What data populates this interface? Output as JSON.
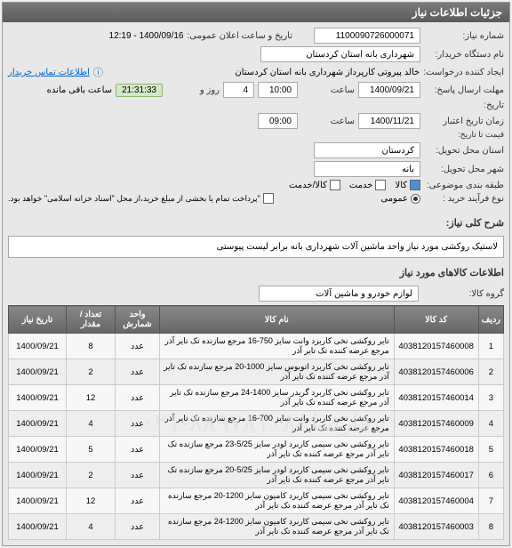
{
  "panel": {
    "title": "جزئیات اطلاعات نیاز"
  },
  "form": {
    "need_number_label": "شماره نیاز:",
    "need_number": "1100090726000071",
    "announce_label": "تاریخ و ساعت اعلان عمومی:",
    "announce_value": "1400/09/16 - 12:19",
    "org_label": "نام دستگاه خریدار:",
    "org_value": "شهرداری بانه استان کردستان",
    "creator_label": "ایجاد کننده درخواست:",
    "creator_value": "خالد پیروتی کارپرداز شهرداری بانه استان کردستان",
    "contact_link": "اطلاعات تماس خریدار",
    "deadline_label": "مهلت ارسال پاسخ:",
    "deadline_date": "1400/09/21",
    "time_label": "ساعت",
    "deadline_time": "10:00",
    "day_label": "روز و",
    "days": "4",
    "timer": "21:31:33",
    "timer_suffix": "ساعت باقی مانده",
    "history_label": "تاریخ:",
    "validity_label": "زمان تاریخ اعتبار",
    "validity_sublabel": "قیمت تا تاریخ:",
    "validity_date": "1400/11/21",
    "validity_time": "09:00",
    "province_label": "استان محل تحویل:",
    "province": "کردستان",
    "city_label": "شهر محل تحویل:",
    "city": "بانه",
    "features_label": "طبقه بندی موضوعی:",
    "feat_product": "کالا",
    "feat_service": "خدمت",
    "feat_both": "کالا/خدمت",
    "process_label": "نوع فرآیند خرید :",
    "proc_open": "عمومی",
    "proc_note": "\"پرداخت تمام یا بخشی از مبلغ خرید،از محل \"اسناد خزانه اسلامی\" خواهد بود."
  },
  "desc": {
    "title_label": "شرح کلی نیاز:",
    "title_text": "لاستیک روکشی مورد نیاز واحد ماشین آلات شهرداری بانه برابر لیست پیوستی",
    "items_header": "اطلاعات کالاهای مورد نیاز",
    "group_label": "گروه کالا:",
    "group_value": "لوازم خودرو و ماشین آلات"
  },
  "table": {
    "watermark": "فارسا -۸۸۹۷۸۱۰۸-۰۲۱",
    "headers": {
      "row": "ردیف",
      "code": "کد کالا",
      "name": "نام کالا",
      "unit": "واحد شمارش",
      "qty": "تعداد / مقدار",
      "date": "تاریخ نیاز"
    },
    "rows": [
      {
        "n": "1",
        "code": "4038120157460008",
        "name": "تایر روکشی نخی کاربرد وانت سایز 750-16 مرجع سازنده تک تایر آذر مرجع عرضه کننده تک تایر آذر",
        "unit": "عدد",
        "qty": "8",
        "date": "1400/09/21"
      },
      {
        "n": "2",
        "code": "4038120157460006",
        "name": "تایر روکشی نخی کاربرد اتوبوس سایز 1000-20 مرجع سازنده تک تایر آذر مرجع عرضه کننده تک تایر آذر",
        "unit": "عدد",
        "qty": "2",
        "date": "1400/09/21"
      },
      {
        "n": "3",
        "code": "4038120157460014",
        "name": "تایر روکشی نخی کاربرد گریدر سایز 1400-24 مرجع سازنده تک تایر آذر مرجع عرضه کننده تک تایر آذر",
        "unit": "عدد",
        "qty": "12",
        "date": "1400/09/21"
      },
      {
        "n": "4",
        "code": "4038120157460009",
        "name": "تایر روکشی نخی کاربرد وانت سایز 700-16 مرجع سازنده تک تایر آذر مرجع عرضه کننده تک تایر آذر",
        "unit": "عدد",
        "qty": "4",
        "date": "1400/09/21"
      },
      {
        "n": "5",
        "code": "4038120157460018",
        "name": "تایر روکشی نخی سیمی کاربرد لودر سایز 5/25-23 مرجع سازنده تک تایر آذر مرجع عرضه کننده تک تایر آذر",
        "unit": "عدد",
        "qty": "5",
        "date": "1400/09/21"
      },
      {
        "n": "6",
        "code": "4038120157460017",
        "name": "تایر روکشی نخی سیمی کاربرد لودر سایز 5/25-20 مرجع سازنده تک تایر آذر مرجع عرضه کننده تک تایر آذر",
        "unit": "عدد",
        "qty": "2",
        "date": "1400/09/21"
      },
      {
        "n": "7",
        "code": "4038120157460004",
        "name": "تایر روکشی نخی سیمی کاربرد کامیون سایز 1200-20 مرجع سازنده تک تایر آذر مرجع عرضه کننده تک تایر آذر",
        "unit": "عدد",
        "qty": "12",
        "date": "1400/09/21"
      },
      {
        "n": "8",
        "code": "4038120157460003",
        "name": "تایر روکشی نخی سیمی کاربرد کامیون سایز 1200-24 مرجع سازنده تک تایر آذر مرجع عرضه کننده تک تایر آذر",
        "unit": "عدد",
        "qty": "4",
        "date": "1400/09/21"
      }
    ]
  }
}
